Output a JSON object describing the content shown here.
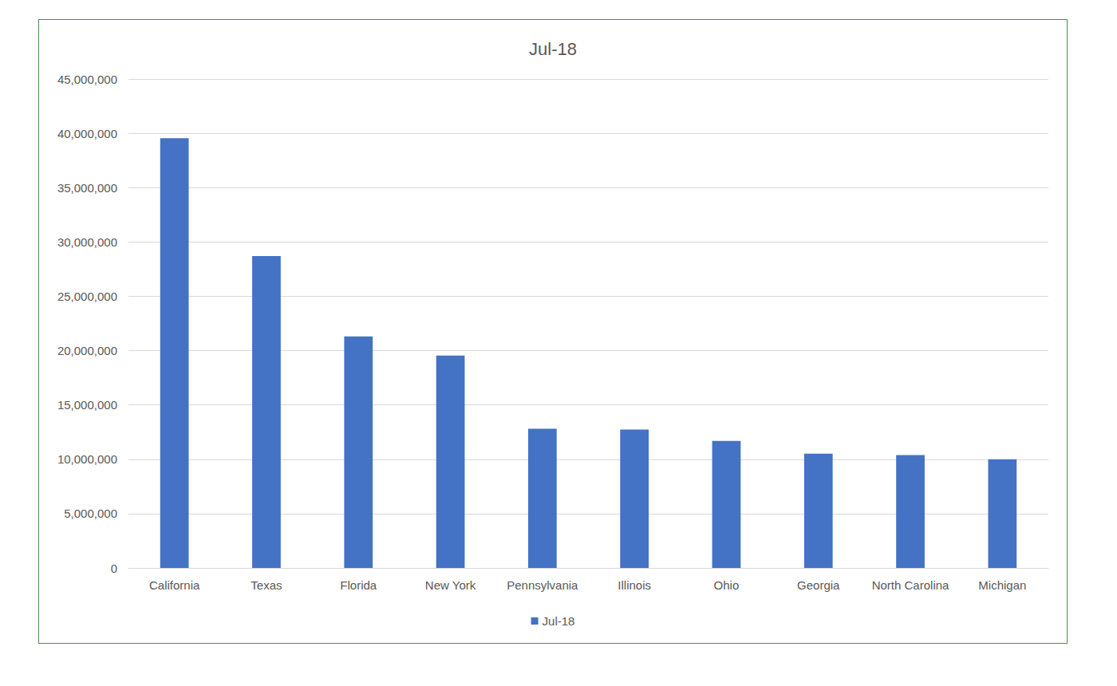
{
  "chart_data": {
    "type": "bar",
    "title": "Jul-18",
    "categories": [
      "California",
      "Texas",
      "Florida",
      "New York",
      "Pennsylvania",
      "Illinois",
      "Ohio",
      "Georgia",
      "North Carolina",
      "Michigan"
    ],
    "series": [
      {
        "name": "Jul-18",
        "color": "#4472c4",
        "values": [
          39557045,
          28701845,
          21299325,
          19542209,
          12807060,
          12741080,
          11689442,
          10519475,
          10383620,
          9995915
        ]
      }
    ],
    "ylim": [
      0,
      45000000
    ],
    "yticks": [
      0,
      {
        "value": 5000000,
        "label": "5,000,000"
      },
      {
        "value": 10000000,
        "label": "10,000,000"
      },
      {
        "value": 15000000,
        "label": "15,000,000"
      },
      {
        "value": 20000000,
        "label": "20,000,000"
      },
      {
        "value": 25000000,
        "label": "25,000,000"
      },
      {
        "value": 30000000,
        "label": "30,000,000"
      },
      {
        "value": 35000000,
        "label": "35,000,000"
      },
      {
        "value": 40000000,
        "label": "40,000,000"
      },
      {
        "value": 45000000,
        "label": "45,000,000"
      }
    ],
    "grid": true,
    "legend": "bottom"
  }
}
